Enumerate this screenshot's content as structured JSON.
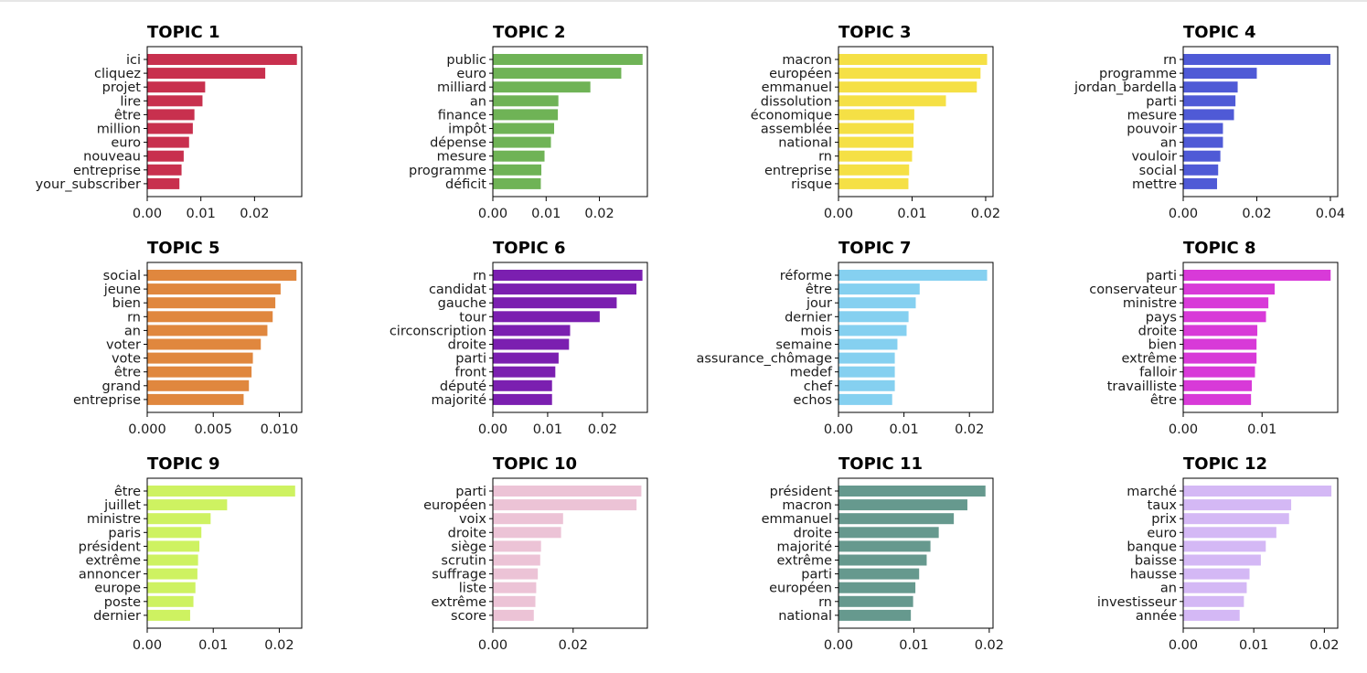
{
  "chart_data": [
    {
      "type": "bar",
      "orientation": "horizontal",
      "title": "TOPIC 1",
      "color": "#c8304e",
      "xlim": [
        0,
        0.0288
      ],
      "xticks": [
        0,
        0.01,
        0.02
      ],
      "xtick_labels": [
        "0.00",
        "0.01",
        "0.02"
      ],
      "categories": [
        "ici",
        "cliquez",
        "projet",
        "lire",
        "être",
        "million",
        "euro",
        "nouveau",
        "entreprise",
        "your_subscriber"
      ],
      "values": [
        0.0279,
        0.022,
        0.0108,
        0.0103,
        0.0088,
        0.0085,
        0.0078,
        0.0068,
        0.0064,
        0.006
      ]
    },
    {
      "type": "bar",
      "orientation": "horizontal",
      "title": "TOPIC 2",
      "color": "#6fb356",
      "xlim": [
        0,
        0.029
      ],
      "xticks": [
        0,
        0.01,
        0.02
      ],
      "xtick_labels": [
        "0.00",
        "0.01",
        "0.02"
      ],
      "categories": [
        "public",
        "euro",
        "milliard",
        "an",
        "finance",
        "impôt",
        "dépense",
        "mesure",
        "programme",
        "déficit"
      ],
      "values": [
        0.0281,
        0.0241,
        0.0183,
        0.0123,
        0.0122,
        0.0115,
        0.0109,
        0.0097,
        0.0091,
        0.009
      ]
    },
    {
      "type": "bar",
      "orientation": "horizontal",
      "title": "TOPIC 3",
      "color": "#f5e045",
      "xlim": [
        0,
        0.021
      ],
      "xticks": [
        0,
        0.01,
        0.02
      ],
      "xtick_labels": [
        "0.00",
        "0.01",
        "0.02"
      ],
      "categories": [
        "macron",
        "européen",
        "emmanuel",
        "dissolution",
        "économique",
        "assemblée",
        "national",
        "rn",
        "entreprise",
        "risque"
      ],
      "values": [
        0.0202,
        0.0193,
        0.0188,
        0.0146,
        0.0103,
        0.0102,
        0.0102,
        0.01,
        0.0096,
        0.0095
      ]
    },
    {
      "type": "bar",
      "orientation": "horizontal",
      "title": "TOPIC 4",
      "color": "#4f5ad6",
      "xlim": [
        0,
        0.042
      ],
      "xticks": [
        0,
        0.02,
        0.04
      ],
      "xtick_labels": [
        "0.00",
        "0.02",
        "0.04"
      ],
      "categories": [
        "rn",
        "programme",
        "jordan_bardella",
        "parti",
        "mesure",
        "pouvoir",
        "an",
        "vouloir",
        "social",
        "mettre"
      ],
      "values": [
        0.04,
        0.02,
        0.0148,
        0.0142,
        0.0138,
        0.0108,
        0.0108,
        0.0101,
        0.0095,
        0.0092
      ]
    },
    {
      "type": "bar",
      "orientation": "horizontal",
      "title": "TOPIC 5",
      "color": "#e0873e",
      "xlim": [
        0,
        0.0117
      ],
      "xticks": [
        0,
        0.005,
        0.01
      ],
      "xtick_labels": [
        "0.000",
        "0.005",
        "0.010"
      ],
      "categories": [
        "social",
        "jeune",
        "bien",
        "rn",
        "an",
        "voter",
        "vote",
        "être",
        "grand",
        "entreprise"
      ],
      "values": [
        0.0113,
        0.0101,
        0.0097,
        0.0095,
        0.0091,
        0.0086,
        0.008,
        0.0079,
        0.0077,
        0.0073
      ]
    },
    {
      "type": "bar",
      "orientation": "horizontal",
      "title": "TOPIC 6",
      "color": "#7b1fb0",
      "xlim": [
        0,
        0.0282
      ],
      "xticks": [
        0,
        0.01,
        0.02
      ],
      "xtick_labels": [
        "0.00",
        "0.01",
        "0.02"
      ],
      "categories": [
        "rn",
        "candidat",
        "gauche",
        "tour",
        "circonscription",
        "droite",
        "parti",
        "front",
        "député",
        "majorité"
      ],
      "values": [
        0.0273,
        0.0262,
        0.0226,
        0.0195,
        0.0141,
        0.0139,
        0.012,
        0.0114,
        0.0108,
        0.0108
      ]
    },
    {
      "type": "bar",
      "orientation": "horizontal",
      "title": "TOPIC 7",
      "color": "#85d0f0",
      "xlim": [
        0,
        0.0236
      ],
      "xticks": [
        0,
        0.01,
        0.02
      ],
      "xtick_labels": [
        "0.00",
        "0.01",
        "0.02"
      ],
      "categories": [
        "réforme",
        "être",
        "jour",
        "dernier",
        "mois",
        "semaine",
        "assurance_chômage",
        "medef",
        "chef",
        "echos"
      ],
      "values": [
        0.0227,
        0.0124,
        0.0118,
        0.0107,
        0.0104,
        0.009,
        0.0086,
        0.0086,
        0.0086,
        0.0082
      ]
    },
    {
      "type": "bar",
      "orientation": "horizontal",
      "title": "TOPIC 8",
      "color": "#d83ad8",
      "xlim": [
        0,
        0.0196
      ],
      "xticks": [
        0,
        0.01
      ],
      "xtick_labels": [
        "0.00",
        "0.01"
      ],
      "categories": [
        "parti",
        "conservateur",
        "ministre",
        "pays",
        "droite",
        "bien",
        "extrême",
        "falloir",
        "travailliste",
        "être"
      ],
      "values": [
        0.0187,
        0.0116,
        0.0108,
        0.0105,
        0.0094,
        0.0093,
        0.0093,
        0.0091,
        0.0087,
        0.0086
      ]
    },
    {
      "type": "bar",
      "orientation": "horizontal",
      "title": "TOPIC 9",
      "color": "#cef261",
      "xlim": [
        0,
        0.0234
      ],
      "xticks": [
        0,
        0.01,
        0.02
      ],
      "xtick_labels": [
        "0.00",
        "0.01",
        "0.02"
      ],
      "categories": [
        "être",
        "juillet",
        "ministre",
        "paris",
        "président",
        "extrême",
        "annoncer",
        "europe",
        "poste",
        "dernier"
      ],
      "values": [
        0.0224,
        0.0121,
        0.0096,
        0.0082,
        0.0079,
        0.0077,
        0.0076,
        0.0073,
        0.007,
        0.0065
      ]
    },
    {
      "type": "bar",
      "orientation": "horizontal",
      "title": "TOPIC 10",
      "color": "#ecc3d6",
      "xlim": [
        0,
        0.0385
      ],
      "xticks": [
        0,
        0.02
      ],
      "xtick_labels": [
        "0.00",
        "0.02"
      ],
      "categories": [
        "parti",
        "européen",
        "voix",
        "droite",
        "siège",
        "scrutin",
        "suffrage",
        "liste",
        "extrême",
        "score"
      ],
      "values": [
        0.037,
        0.0358,
        0.0175,
        0.017,
        0.012,
        0.0118,
        0.0112,
        0.0108,
        0.0106,
        0.0102
      ]
    },
    {
      "type": "bar",
      "orientation": "horizontal",
      "title": "TOPIC 11",
      "color": "#66998e",
      "xlim": [
        0,
        0.0205
      ],
      "xticks": [
        0,
        0.01,
        0.02
      ],
      "xtick_labels": [
        "0.00",
        "0.01",
        "0.02"
      ],
      "categories": [
        "président",
        "macron",
        "emmanuel",
        "droite",
        "majorité",
        "extrême",
        "parti",
        "européen",
        "rn",
        "national"
      ],
      "values": [
        0.0195,
        0.0171,
        0.0153,
        0.0133,
        0.0122,
        0.0117,
        0.0107,
        0.0102,
        0.0099,
        0.0096
      ]
    },
    {
      "type": "bar",
      "orientation": "horizontal",
      "title": "TOPIC 12",
      "color": "#d4b8f5",
      "xlim": [
        0,
        0.0219
      ],
      "xticks": [
        0,
        0.01,
        0.02
      ],
      "xtick_labels": [
        "0.00",
        "0.01",
        "0.02"
      ],
      "categories": [
        "marché",
        "taux",
        "prix",
        "euro",
        "banque",
        "baisse",
        "hausse",
        "an",
        "investisseur",
        "année"
      ],
      "values": [
        0.021,
        0.0153,
        0.015,
        0.0132,
        0.0117,
        0.011,
        0.0094,
        0.009,
        0.0086,
        0.008
      ]
    }
  ]
}
